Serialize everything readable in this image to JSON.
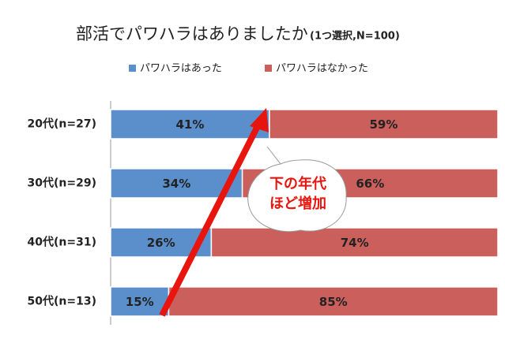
{
  "chart_data": {
    "type": "stacked-bar-h",
    "title": "部活でパワハラはありましたか",
    "subtitle": "(1つ選択,N=100)",
    "categories": [
      "20代(n=27)",
      "30代(n=29)",
      "40代(n=31)",
      "50代(n=13)"
    ],
    "series": [
      {
        "name": "パワハラはあった",
        "color": "#5b8fcb",
        "values": [
          41,
          34,
          26,
          15
        ],
        "value_labels": [
          "41%",
          "34%",
          "26%",
          "15%"
        ]
      },
      {
        "name": "パワハラはなかった",
        "color": "#cb5f5c",
        "values": [
          59,
          66,
          74,
          85
        ],
        "value_labels": [
          "59%",
          "66%",
          "74%",
          "85%"
        ]
      }
    ],
    "annotation": [
      "下の年代",
      "ほど増加"
    ],
    "legend": "top"
  }
}
